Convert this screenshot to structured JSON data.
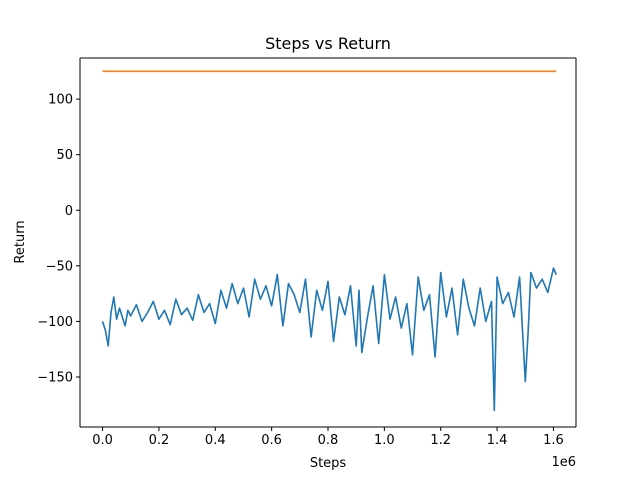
{
  "chart_data": {
    "type": "line",
    "title": "Steps vs Return",
    "xlabel": "Steps",
    "ylabel": "Return",
    "x_offset_label": "1e6",
    "xlim": [
      -0.08,
      1.68
    ],
    "ylim": [
      -195,
      137
    ],
    "xticks": [
      {
        "value": 0.0,
        "label": "0.0"
      },
      {
        "value": 0.2,
        "label": "0.2"
      },
      {
        "value": 0.4,
        "label": "0.4"
      },
      {
        "value": 0.6,
        "label": "0.6"
      },
      {
        "value": 0.8,
        "label": "0.8"
      },
      {
        "value": 1.0,
        "label": "1.0"
      },
      {
        "value": 1.2,
        "label": "1.2"
      },
      {
        "value": 1.4,
        "label": "1.4"
      },
      {
        "value": 1.6,
        "label": "1.6"
      }
    ],
    "yticks": [
      {
        "value": 100,
        "label": "100"
      },
      {
        "value": 50,
        "label": "50"
      },
      {
        "value": 0,
        "label": "0"
      },
      {
        "value": -50,
        "label": "−50"
      },
      {
        "value": -100,
        "label": "−100"
      },
      {
        "value": -150,
        "label": "−150"
      }
    ],
    "grid": false,
    "series": [
      {
        "color": "#1f77b4",
        "x": [
          0.0,
          0.01,
          0.02,
          0.03,
          0.04,
          0.05,
          0.06,
          0.07,
          0.08,
          0.09,
          0.1,
          0.12,
          0.14,
          0.16,
          0.18,
          0.2,
          0.22,
          0.24,
          0.26,
          0.28,
          0.3,
          0.32,
          0.34,
          0.36,
          0.38,
          0.4,
          0.42,
          0.44,
          0.46,
          0.48,
          0.5,
          0.52,
          0.54,
          0.56,
          0.58,
          0.6,
          0.62,
          0.64,
          0.66,
          0.68,
          0.7,
          0.72,
          0.74,
          0.76,
          0.78,
          0.8,
          0.82,
          0.84,
          0.86,
          0.88,
          0.9,
          0.91,
          0.92,
          0.94,
          0.96,
          0.98,
          1.0,
          1.02,
          1.04,
          1.06,
          1.08,
          1.1,
          1.12,
          1.14,
          1.16,
          1.18,
          1.2,
          1.22,
          1.24,
          1.26,
          1.28,
          1.3,
          1.32,
          1.34,
          1.36,
          1.38,
          1.39,
          1.4,
          1.42,
          1.44,
          1.46,
          1.48,
          1.5,
          1.51,
          1.52,
          1.54,
          1.56,
          1.58,
          1.6,
          1.61
        ],
        "values": [
          -100,
          -108,
          -122,
          -92,
          -78,
          -98,
          -88,
          -96,
          -104,
          -90,
          -95,
          -85,
          -100,
          -92,
          -82,
          -98,
          -90,
          -103,
          -80,
          -94,
          -88,
          -99,
          -76,
          -92,
          -84,
          -102,
          -72,
          -88,
          -66,
          -84,
          -70,
          -96,
          -62,
          -80,
          -68,
          -86,
          -58,
          -104,
          -66,
          -76,
          -92,
          -62,
          -114,
          -72,
          -90,
          -64,
          -118,
          -78,
          -94,
          -68,
          -122,
          -72,
          -128,
          -96,
          -68,
          -120,
          -58,
          -98,
          -78,
          -106,
          -84,
          -130,
          -60,
          -90,
          -76,
          -132,
          -56,
          -96,
          -70,
          -112,
          -62,
          -88,
          -104,
          -70,
          -100,
          -82,
          -180,
          -60,
          -84,
          -74,
          -96,
          -60,
          -154,
          -110,
          -56,
          -70,
          -62,
          -74,
          -52,
          -58
        ]
      },
      {
        "color": "#ff7f0e",
        "x": [
          0.0,
          1.61
        ],
        "values": [
          125,
          125
        ]
      }
    ]
  }
}
